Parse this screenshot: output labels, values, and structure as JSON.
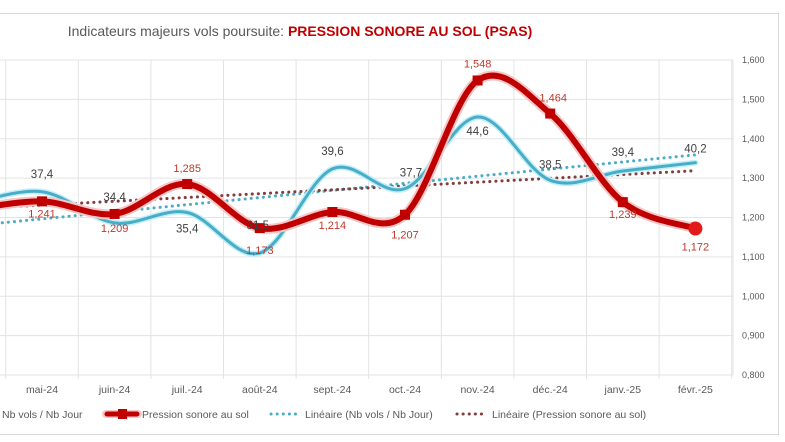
{
  "chart_data": {
    "type": "line",
    "title_prefix": "Indicateurs majeurs vols poursuite: ",
    "title_highlight": "PRESSION SONORE AU SOL (PSAS)",
    "categories": [
      "mai-24",
      "juin-24",
      "juil.-24",
      "août-24",
      "sept.-24",
      "oct.-24",
      "nov.-24",
      "déc.-24",
      "janv.-25",
      "févr.-25"
    ],
    "series": [
      {
        "name": "Nb vols / Nb Jour",
        "axis": "left (hidden)",
        "color": "#4bacc6",
        "values": [
          37.4,
          34.4,
          35.4,
          31.5,
          39.6,
          37.7,
          44.6,
          38.5,
          39.4,
          40.2
        ],
        "labels": [
          "37,4",
          "34,4",
          "35,4",
          "31,5",
          "39,6",
          "37,7",
          "44,6",
          "38,5",
          "39,4",
          "40,2"
        ]
      },
      {
        "name": "Pression sonore au sol",
        "axis": "right",
        "color": "#c00000",
        "values": [
          1.241,
          1.209,
          1.285,
          1.173,
          1.214,
          1.207,
          1.548,
          1.464,
          1.239,
          1.172
        ],
        "labels": [
          "1,241",
          "1,209",
          "1,285",
          "1,173",
          "1,214",
          "1,207",
          "1,548",
          "1,464",
          "1,239",
          "1,172"
        ]
      }
    ],
    "trendlines": [
      {
        "name": "Linéaire (Nb vols / Nb Jour)",
        "color": "#4bacc6",
        "style": "dotted"
      },
      {
        "name": "Linéaire (Pression sonore au sol)",
        "color": "#843c3c",
        "style": "dotted"
      }
    ],
    "y2_ticks": [
      "1,600",
      "1,500",
      "1,400",
      "1,300",
      "1,200",
      "1,100",
      "1,000",
      "0,900",
      "0,800"
    ],
    "y2lim": [
      0.8,
      1.6
    ],
    "grid": true,
    "legend": "bottom",
    "legend_labels": [
      "Nb vols / Nb Jour",
      "Pression sonore au sol",
      "Linéaire (Nb vols / Nb Jour)",
      "Linéaire (Pression sonore au sol)"
    ]
  }
}
